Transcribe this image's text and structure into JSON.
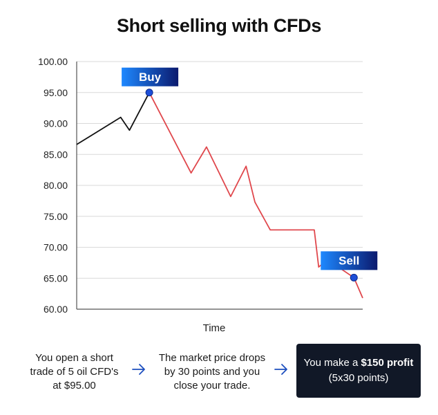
{
  "title": "Short selling with CFDs",
  "chart_data": {
    "type": "line",
    "xlabel": "Time",
    "ylabel": "",
    "ylim": [
      60,
      100
    ],
    "yticks": [
      "100.00",
      "95.00",
      "90.00",
      "85.00",
      "80.00",
      "75.00",
      "70.00",
      "65.00",
      "60.00"
    ],
    "grid": true,
    "series": [
      {
        "color": "#111111",
        "x": [
          0,
          2,
          2.4,
          3.3
        ],
        "y": [
          86.6,
          91.0,
          88.9,
          95.0
        ]
      },
      {
        "color": "#e0474c",
        "x": [
          3.3,
          5.2,
          5.9,
          7.0,
          7.7,
          8.1,
          8.8,
          10.0,
          10.4,
          10.8,
          11.0,
          11.4,
          12.6,
          13.0
        ],
        "y": [
          95.0,
          82.0,
          86.2,
          78.2,
          83.1,
          77.3,
          72.8,
          72.8,
          72.8,
          72.8,
          66.8,
          68.0,
          65.1,
          61.8
        ]
      }
    ],
    "markers": [
      {
        "label": "Buy",
        "x": 3.3,
        "y": 95.0
      },
      {
        "label": "Sell",
        "x": 12.6,
        "y": 65.1
      }
    ]
  },
  "steps": [
    {
      "text": "You open a short trade of 5 oil CFD's at $95.00"
    },
    {
      "text": "The market price drops by 30 points and you close your trade."
    }
  ],
  "result": {
    "prefix": "You make a ",
    "highlight": "$150 profit",
    "detail": "(5x30 points)"
  },
  "colors": {
    "tag_gradient_start": "#1e88ff",
    "tag_gradient_end": "#0b1a6e",
    "marker": "#1d4ed8",
    "result_bg": "#111827",
    "arrow": "#1d4fbf"
  }
}
